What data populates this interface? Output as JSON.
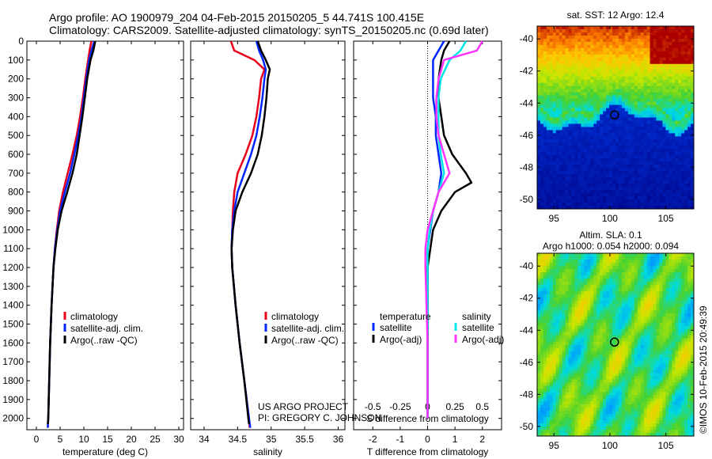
{
  "header": {
    "title_line1": "Argo profile: AO 1900979_204 04-Feb-2015 20150205_5 44.741S 100.415E",
    "title_line2": "Climatology: CARS2009. Satellite-adjusted climatology: synTS_20150205.nc (0.69d later)"
  },
  "credits": {
    "line1": "US ARGO PROJECT",
    "line2": "PI: GREGORY C. JOHNSON"
  },
  "stamp": "©IMOS 10-Feb-2015 20:49:39",
  "colors": {
    "climatology": "#e8001a",
    "satellite": "#0026ff",
    "argo": "#000000",
    "sal_satellite": "#00e5e5",
    "sal_argo": "#ff33ff"
  },
  "chart_data": [
    {
      "type": "line",
      "name": "temperature-profile",
      "xlabel": "temperature (deg C)",
      "ylabel": "",
      "xlim": [
        -2,
        31
      ],
      "ylim": [
        2060,
        0
      ],
      "xticks": [
        0,
        5,
        10,
        15,
        20,
        25,
        30
      ],
      "xtick_labels": [
        "0",
        "5",
        "10",
        "15",
        "20",
        "25",
        "30"
      ],
      "yticks": [
        0,
        100,
        200,
        300,
        400,
        500,
        600,
        700,
        800,
        900,
        1000,
        1100,
        1200,
        1300,
        1400,
        1500,
        1600,
        1700,
        1800,
        1900,
        2000
      ],
      "legend": [
        "climatology",
        "satellite-adj. clim.",
        "Argo(..raw -QC)"
      ],
      "legend_placement": "lower-right",
      "series": [
        {
          "name": "climatology",
          "depth": [
            0,
            50,
            100,
            200,
            300,
            400,
            500,
            600,
            700,
            800,
            900,
            1000,
            1100,
            1200,
            1400,
            1600,
            1800,
            2000,
            2050
          ],
          "values": [
            11.6,
            11.2,
            10.9,
            10.3,
            9.8,
            9.2,
            8.5,
            7.6,
            6.6,
            5.6,
            4.8,
            4.3,
            3.9,
            3.6,
            3.2,
            2.9,
            2.7,
            2.5,
            2.4
          ]
        },
        {
          "name": "satellite-adj. clim.",
          "depth": [
            0,
            50,
            100,
            200,
            300,
            400,
            500,
            600,
            700,
            800,
            900,
            1000,
            1100,
            1200,
            1400,
            1600,
            1800,
            2000,
            2050
          ],
          "values": [
            12.2,
            11.6,
            11.1,
            10.5,
            10.0,
            9.5,
            8.8,
            8.0,
            7.1,
            6.0,
            5.0,
            4.4,
            3.9,
            3.6,
            3.2,
            2.9,
            2.7,
            2.5,
            2.4
          ]
        },
        {
          "name": "Argo(..raw -QC)",
          "depth": [
            0,
            50,
            100,
            200,
            300,
            400,
            500,
            600,
            700,
            800,
            900,
            1000,
            1100,
            1200,
            1400,
            1600,
            1800,
            2000,
            2030
          ],
          "values": [
            12.4,
            12.0,
            11.4,
            10.7,
            10.2,
            9.7,
            9.1,
            8.5,
            7.6,
            6.5,
            5.3,
            4.5,
            4.0,
            3.6,
            3.2,
            2.9,
            2.7,
            2.5,
            2.4
          ]
        }
      ]
    },
    {
      "type": "line",
      "name": "salinity-profile",
      "xlabel": "salinity",
      "ylabel": "",
      "xlim": [
        33.8,
        36.1
      ],
      "ylim": [
        2060,
        0
      ],
      "xticks": [
        34,
        34.5,
        35,
        35.5,
        36
      ],
      "xtick_labels": [
        "34",
        "34.5",
        "35",
        "35.5",
        "36"
      ],
      "legend": [
        "climatology",
        "satellite-adj. clim.",
        "Argo(..raw -QC)"
      ],
      "legend_placement": "lower-right",
      "series": [
        {
          "name": "climatology",
          "depth": [
            0,
            50,
            100,
            150,
            200,
            300,
            400,
            500,
            600,
            700,
            800,
            900,
            1000,
            1100,
            1200,
            1400,
            1600,
            1800,
            2000,
            2050
          ],
          "values": [
            34.4,
            34.45,
            34.75,
            34.9,
            34.85,
            34.82,
            34.78,
            34.72,
            34.62,
            34.5,
            34.45,
            34.43,
            34.42,
            34.41,
            34.42,
            34.47,
            34.53,
            34.6,
            34.67,
            34.68
          ]
        },
        {
          "name": "satellite-adj. clim.",
          "depth": [
            0,
            50,
            100,
            150,
            200,
            300,
            400,
            500,
            600,
            700,
            800,
            900,
            1000,
            1100,
            1200,
            1400,
            1600,
            1800,
            2000,
            2050
          ],
          "values": [
            34.78,
            34.82,
            34.88,
            34.92,
            34.9,
            34.87,
            34.83,
            34.78,
            34.7,
            34.6,
            34.5,
            34.45,
            34.42,
            34.41,
            34.42,
            34.47,
            34.53,
            34.6,
            34.67,
            34.69
          ]
        },
        {
          "name": "Argo(..raw -QC)",
          "depth": [
            0,
            50,
            100,
            150,
            200,
            300,
            400,
            500,
            600,
            700,
            800,
            900,
            1000,
            1100,
            1200,
            1400,
            1600,
            1800,
            2000,
            2030
          ],
          "values": [
            34.8,
            34.85,
            34.92,
            34.98,
            34.95,
            34.93,
            34.9,
            34.86,
            34.8,
            34.7,
            34.57,
            34.47,
            34.43,
            34.41,
            34.42,
            34.47,
            34.53,
            34.6,
            34.66,
            34.67
          ]
        }
      ]
    },
    {
      "type": "line",
      "name": "difference-profile",
      "xlabel": "T difference from climatology",
      "xlabel_top": "S difference from climatology",
      "xlim": [
        -2.7,
        2.7
      ],
      "ylim": [
        2060,
        0
      ],
      "xticks": [
        -2,
        -1,
        0,
        1,
        2
      ],
      "xtick_labels": [
        "-2",
        "-1",
        "0",
        "1",
        "2"
      ],
      "sticks": [
        -0.5,
        -0.25,
        0,
        0.25,
        0.5
      ],
      "stick_labels": [
        "-0.5",
        "-0.25",
        "0",
        "0.25",
        "0.5"
      ],
      "legend_groups": [
        {
          "title": "temperature",
          "items": [
            "satellite",
            "Argo(-adj)"
          ]
        },
        {
          "title": "salinity",
          "items": [
            "satellite",
            "Argo(-adj)"
          ]
        }
      ],
      "legend_placement": "lower-center",
      "series": [
        {
          "name": "temperature satellite",
          "depth": [
            0,
            50,
            100,
            200,
            300,
            400,
            500,
            600,
            700,
            800,
            900,
            1000,
            1100,
            1200,
            1400,
            1600,
            1800,
            2000
          ],
          "values": [
            0.6,
            0.4,
            0.2,
            0.2,
            0.2,
            0.3,
            0.3,
            0.4,
            0.5,
            0.4,
            0.2,
            0.1,
            0.0,
            0.0,
            0.0,
            0.0,
            0.0,
            0.0
          ]
        },
        {
          "name": "temperature Argo(-adj)",
          "depth": [
            0,
            50,
            100,
            200,
            300,
            400,
            500,
            600,
            700,
            750,
            800,
            900,
            1000,
            1100,
            1200,
            1400,
            1600,
            1800,
            2000
          ],
          "values": [
            0.8,
            0.6,
            0.5,
            0.4,
            0.4,
            0.5,
            0.6,
            0.9,
            1.4,
            1.6,
            1.0,
            0.5,
            0.2,
            0.1,
            0.0,
            0.0,
            0.0,
            0.0,
            0.0
          ]
        },
        {
          "name": "salinity satellite",
          "depth": [
            0,
            50,
            100,
            200,
            300,
            400,
            500,
            600,
            700,
            800,
            900,
            1000,
            1100,
            1200,
            1400,
            1600,
            1800,
            2000
          ],
          "values": [
            0.35,
            0.3,
            0.2,
            0.12,
            0.1,
            0.1,
            0.1,
            0.12,
            0.15,
            0.1,
            0.05,
            0.02,
            0.0,
            0.0,
            0.0,
            0.0,
            0.0,
            0.0
          ]
        },
        {
          "name": "salinity Argo(-adj)",
          "depth": [
            0,
            50,
            100,
            200,
            300,
            400,
            500,
            600,
            700,
            800,
            900,
            1000,
            1100,
            1200,
            1400,
            1600,
            1800,
            2000
          ],
          "values": [
            0.5,
            0.45,
            0.15,
            0.1,
            0.08,
            0.08,
            0.1,
            0.15,
            0.2,
            0.1,
            0.05,
            0.0,
            -0.02,
            -0.02,
            -0.01,
            0.0,
            0.0,
            0.0
          ]
        }
      ]
    },
    {
      "type": "heatmap",
      "name": "sst-map",
      "title": "sat. SST: 12 Argo: 12.4",
      "xlim": [
        93.5,
        107.5
      ],
      "ylim": [
        -50.6,
        -39.2
      ],
      "xticks": [
        95,
        100,
        105
      ],
      "yticks": [
        -40,
        -42,
        -44,
        -46,
        -48,
        -50
      ],
      "marker": {
        "lon": 100.415,
        "lat": -44.741
      }
    },
    {
      "type": "heatmap",
      "name": "sla-map",
      "title_line1": "Altim. SLA: 0.1",
      "title_line2": "Argo h1000: 0.054 h2000: 0.094",
      "xlim": [
        93.5,
        107.5
      ],
      "ylim": [
        -50.6,
        -39.2
      ],
      "xticks": [
        95,
        100,
        105
      ],
      "yticks": [
        -40,
        -42,
        -44,
        -46,
        -48,
        -50
      ],
      "marker": {
        "lon": 100.415,
        "lat": -44.741
      }
    }
  ]
}
